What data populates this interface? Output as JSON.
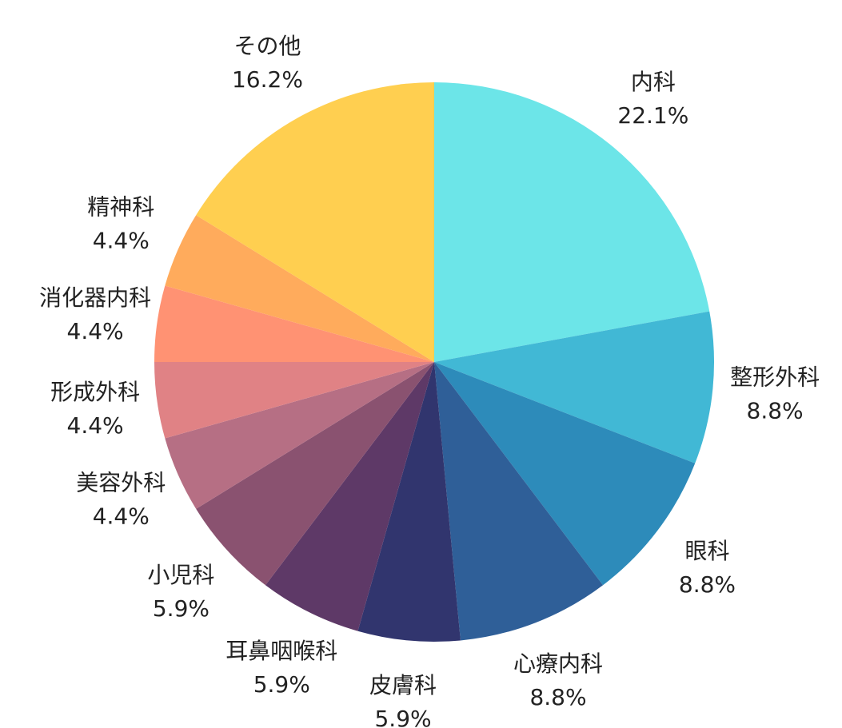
{
  "chart_data": {
    "type": "pie",
    "categories": [
      "内科",
      "整形外科",
      "眼科",
      "心療内科",
      "皮膚科",
      "耳鼻咽喉科",
      "小児科",
      "美容外科",
      "形成外科",
      "消化器内科",
      "精神科",
      "その他"
    ],
    "values": [
      22.1,
      8.8,
      8.8,
      8.8,
      5.9,
      5.9,
      5.9,
      4.4,
      4.4,
      4.4,
      4.4,
      16.2
    ],
    "value_labels": [
      "22.1%",
      "8.8%",
      "8.8%",
      "8.8%",
      "5.9%",
      "5.9%",
      "5.9%",
      "4.4%",
      "4.4%",
      "4.4%",
      "4.4%",
      "16.2%"
    ],
    "colors": [
      "#6ce5e8",
      "#41b8d5",
      "#2d8bba",
      "#2f5f98",
      "#31356e",
      "#5e3967",
      "#8a5270",
      "#b66f84",
      "#e08285",
      "#ff9273",
      "#ffab5c",
      "#ffcf50"
    ]
  }
}
